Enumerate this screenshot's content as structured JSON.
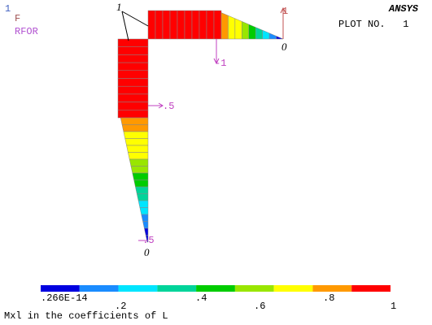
{
  "header": {
    "window_number": "1",
    "load_label": "F",
    "result_label": "RFOR",
    "logo": "ANSYS",
    "plot_number": "PLOT NO.   1"
  },
  "model_labels": {
    "node_top": "1",
    "right_up": "1",
    "right_zero": "0",
    "beam_minus": "-1",
    "column_half": ".5",
    "column_minus_half": "-.5",
    "column_zero": "0"
  },
  "legend": {
    "labels": [
      ".266E-14",
      ".2",
      ".4",
      ".6",
      ".8",
      "1"
    ],
    "caption": "Mxl in the coefficients of L"
  }
}
